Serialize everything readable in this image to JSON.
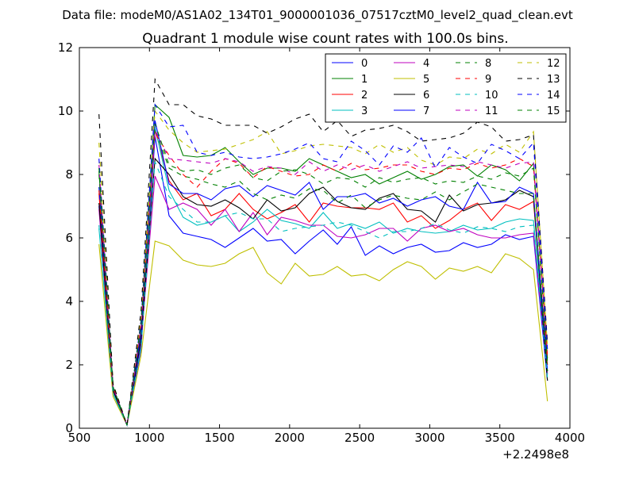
{
  "chart_data": {
    "type": "line",
    "suptitle": "Data file: modeM0/AS1A02_134T01_9000001036_07517cztM0_level2_quad_clean.evt",
    "title": "Quadrant 1 module wise count rates with 100.0s bins.",
    "xlabel": "",
    "ylabel": "",
    "x_offset_label": "+2.2498e8",
    "xlim": [
      500,
      4000
    ],
    "ylim": [
      0,
      12
    ],
    "xticks": [
      "500",
      "1000",
      "1500",
      "2000",
      "2500",
      "3000",
      "3500",
      "4000"
    ],
    "yticks": [
      "0",
      "2",
      "4",
      "6",
      "8",
      "10",
      "12"
    ],
    "grid": false,
    "legend_position": "top-right",
    "x": [
      640,
      740,
      840,
      940,
      1040,
      1140,
      1240,
      1340,
      1440,
      1540,
      1640,
      1740,
      1840,
      1940,
      2040,
      2140,
      2240,
      2340,
      2440,
      2540,
      2640,
      2740,
      2840,
      2940,
      3040,
      3140,
      3240,
      3340,
      3440,
      3540,
      3640,
      3740,
      3840
    ],
    "series": [
      {
        "name": "0",
        "color": "#0000ff",
        "dash": "solid",
        "values": [
          7.0,
          1.1,
          0.1,
          2.5,
          9.2,
          6.7,
          6.15,
          6.05,
          5.95,
          5.7,
          6.0,
          6.3,
          5.9,
          5.95,
          5.5,
          5.9,
          6.25,
          5.8,
          6.35,
          5.45,
          5.75,
          5.5,
          5.7,
          5.8,
          5.55,
          5.6,
          5.85,
          5.7,
          5.8,
          6.1,
          5.95,
          6.05,
          1.5
        ]
      },
      {
        "name": "1",
        "color": "#008000",
        "dash": "solid",
        "values": [
          8.1,
          1.3,
          0.1,
          3.2,
          10.2,
          9.8,
          8.6,
          8.55,
          8.6,
          8.85,
          8.4,
          8.0,
          8.2,
          8.2,
          8.1,
          8.5,
          8.3,
          8.1,
          7.9,
          8.0,
          7.7,
          7.9,
          8.1,
          7.85,
          8.0,
          8.25,
          8.3,
          7.95,
          8.3,
          8.15,
          7.8,
          8.35,
          2.2
        ]
      },
      {
        "name": "2",
        "color": "#ff0000",
        "dash": "solid",
        "values": [
          7.4,
          1.2,
          0.1,
          2.9,
          9.4,
          7.8,
          7.2,
          7.4,
          6.7,
          6.9,
          7.4,
          6.9,
          6.6,
          6.8,
          7.05,
          6.5,
          7.1,
          7.0,
          6.95,
          6.95,
          6.9,
          7.1,
          6.5,
          6.7,
          6.3,
          6.55,
          6.9,
          7.1,
          6.55,
          7.05,
          6.9,
          7.15,
          2.0
        ]
      },
      {
        "name": "3",
        "color": "#00bfbf",
        "dash": "solid",
        "values": [
          6.3,
          1.1,
          0.1,
          2.6,
          9.5,
          7.5,
          6.65,
          6.4,
          6.5,
          6.7,
          6.2,
          6.5,
          6.9,
          6.55,
          6.45,
          6.3,
          6.8,
          6.3,
          6.45,
          6.3,
          6.5,
          6.15,
          6.3,
          6.2,
          6.15,
          6.2,
          6.4,
          6.25,
          6.3,
          6.5,
          6.6,
          6.55,
          1.8
        ]
      },
      {
        "name": "4",
        "color": "#bf00bf",
        "dash": "solid",
        "values": [
          6.9,
          1.2,
          0.1,
          2.7,
          7.95,
          6.9,
          7.1,
          6.9,
          6.4,
          6.9,
          6.2,
          6.8,
          6.1,
          6.65,
          6.55,
          6.4,
          6.4,
          6.05,
          6.0,
          6.1,
          6.3,
          6.3,
          5.9,
          6.3,
          6.4,
          6.2,
          6.3,
          6.1,
          6.0,
          6.0,
          6.1,
          6.15,
          1.7
        ]
      },
      {
        "name": "5",
        "color": "#bfbf00",
        "dash": "solid",
        "values": [
          5.8,
          1.0,
          0.1,
          2.3,
          5.9,
          5.75,
          5.3,
          5.15,
          5.1,
          5.2,
          5.5,
          5.7,
          4.9,
          4.55,
          5.2,
          4.8,
          4.85,
          5.1,
          4.8,
          4.85,
          4.65,
          5.0,
          5.25,
          5.1,
          4.7,
          5.05,
          4.95,
          5.1,
          4.9,
          5.5,
          5.35,
          5.0,
          0.85
        ]
      },
      {
        "name": "6",
        "color": "#000000",
        "dash": "solid",
        "values": [
          7.1,
          1.2,
          0.1,
          2.8,
          8.5,
          8.0,
          7.3,
          7.05,
          7.0,
          7.2,
          6.95,
          6.6,
          7.2,
          6.85,
          6.95,
          7.4,
          7.6,
          7.15,
          6.95,
          6.9,
          7.25,
          7.4,
          6.9,
          6.85,
          6.5,
          7.35,
          6.85,
          7.05,
          7.1,
          7.2,
          7.5,
          7.3,
          1.5
        ]
      },
      {
        "name": "7",
        "color": "#0000ff",
        "dash": "solid",
        "values": [
          7.6,
          1.3,
          0.1,
          3.0,
          9.7,
          7.7,
          7.4,
          7.4,
          7.2,
          7.55,
          7.65,
          7.3,
          7.65,
          7.5,
          7.35,
          7.75,
          6.9,
          7.3,
          7.3,
          7.4,
          7.1,
          7.25,
          7.0,
          7.2,
          7.3,
          7.0,
          6.9,
          7.75,
          7.1,
          7.15,
          7.6,
          7.4,
          1.8
        ]
      },
      {
        "name": "8",
        "color": "#008000",
        "dash": "dashed",
        "values": [
          8.0,
          1.3,
          0.1,
          3.1,
          9.4,
          8.2,
          7.95,
          7.85,
          7.7,
          7.6,
          7.8,
          7.4,
          7.2,
          7.35,
          7.25,
          7.55,
          7.5,
          7.1,
          7.35,
          6.95,
          7.2,
          7.35,
          7.25,
          7.2,
          7.45,
          7.2,
          7.45,
          7.7,
          7.6,
          7.5,
          7.4,
          7.4,
          1.8
        ]
      },
      {
        "name": "9",
        "color": "#ff0000",
        "dash": "dashed",
        "values": [
          7.5,
          1.3,
          0.1,
          3.3,
          9.3,
          8.6,
          8.0,
          7.6,
          8.1,
          8.5,
          8.35,
          7.9,
          8.25,
          8.1,
          7.95,
          8.0,
          8.3,
          8.1,
          8.35,
          8.15,
          8.2,
          8.3,
          8.3,
          8.1,
          8.0,
          8.2,
          8.15,
          8.35,
          8.2,
          8.3,
          8.5,
          8.25,
          2.3
        ]
      },
      {
        "name": "10",
        "color": "#00bfbf",
        "dash": "dashed",
        "values": [
          6.4,
          1.1,
          0.1,
          2.6,
          8.4,
          7.3,
          6.9,
          6.5,
          6.5,
          6.7,
          6.8,
          6.6,
          6.6,
          6.2,
          6.3,
          6.35,
          6.4,
          6.5,
          6.4,
          6.2,
          6.0,
          6.2,
          6.2,
          6.3,
          6.45,
          6.25,
          6.15,
          6.35,
          6.3,
          6.2,
          6.35,
          6.4,
          1.6
        ]
      },
      {
        "name": "11",
        "color": "#bf00bf",
        "dash": "dashed",
        "values": [
          8.3,
          1.3,
          0.1,
          3.2,
          9.4,
          8.5,
          8.45,
          8.4,
          8.35,
          8.5,
          8.4,
          8.1,
          8.25,
          8.2,
          8.0,
          8.4,
          8.1,
          8.3,
          8.15,
          8.3,
          8.1,
          8.25,
          8.4,
          8.2,
          8.25,
          8.3,
          8.25,
          8.4,
          8.3,
          8.2,
          8.35,
          8.4,
          2.4
        ]
      },
      {
        "name": "12",
        "color": "#bfbf00",
        "dash": "dashed",
        "values": [
          9.0,
          1.4,
          0.1,
          3.5,
          10.0,
          9.4,
          9.0,
          8.7,
          8.75,
          8.8,
          8.95,
          9.1,
          9.35,
          8.65,
          8.75,
          8.9,
          8.95,
          8.9,
          8.85,
          8.65,
          8.95,
          8.7,
          8.85,
          8.45,
          8.3,
          8.55,
          8.5,
          8.8,
          8.65,
          8.95,
          8.7,
          9.35,
          2.6
        ]
      },
      {
        "name": "13",
        "color": "#000000",
        "dash": "dashed",
        "values": [
          9.9,
          1.4,
          0.1,
          3.7,
          11.0,
          10.2,
          10.2,
          9.85,
          9.75,
          9.55,
          9.55,
          9.55,
          9.3,
          9.5,
          9.75,
          9.9,
          9.35,
          9.7,
          9.2,
          9.4,
          9.45,
          9.55,
          9.35,
          9.05,
          9.1,
          9.15,
          9.3,
          9.65,
          9.5,
          9.05,
          9.1,
          9.25,
          2.7
        ]
      },
      {
        "name": "14",
        "color": "#0000ff",
        "dash": "dashed",
        "values": [
          8.5,
          1.3,
          0.1,
          3.4,
          10.2,
          9.5,
          9.55,
          8.7,
          8.6,
          8.7,
          8.55,
          8.5,
          8.55,
          8.65,
          8.8,
          9.0,
          8.5,
          8.4,
          9.05,
          8.75,
          8.3,
          8.9,
          8.7,
          9.15,
          8.2,
          8.85,
          8.55,
          8.35,
          8.95,
          8.75,
          8.5,
          9.0,
          2.5
        ]
      },
      {
        "name": "15",
        "color": "#008000",
        "dash": "dashed",
        "values": [
          8.2,
          1.3,
          0.1,
          3.3,
          9.6,
          8.3,
          8.1,
          8.15,
          8.0,
          8.2,
          8.3,
          7.9,
          7.8,
          8.1,
          8.15,
          8.0,
          7.7,
          7.9,
          7.85,
          7.6,
          7.9,
          7.75,
          7.85,
          7.9,
          7.7,
          7.8,
          7.75,
          7.95,
          7.85,
          8.05,
          7.95,
          8.2,
          2.1
        ]
      }
    ]
  }
}
